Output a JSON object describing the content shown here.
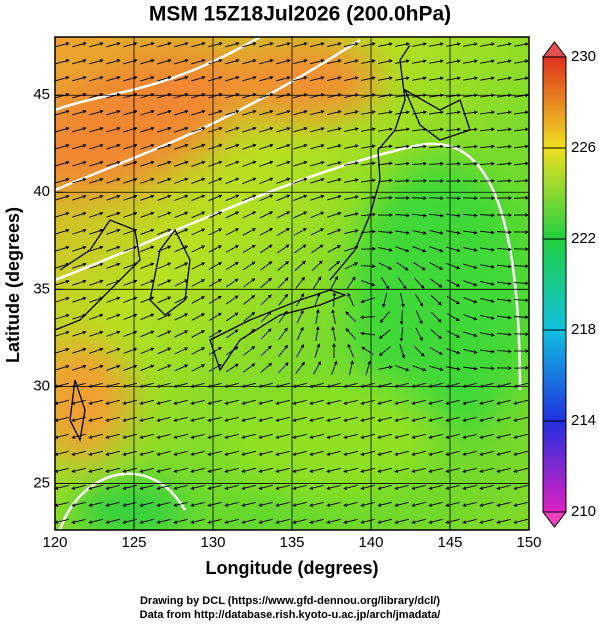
{
  "title": "MSM 15Z18Jul2026 (200.0hPa)",
  "map": {
    "xlabel": "Longitude (degrees)",
    "ylabel": "Latitude  (degrees)",
    "xlim": [
      120,
      150
    ],
    "ylim": [
      22.6,
      48
    ],
    "xticks": [
      120,
      125,
      130,
      135,
      140,
      145,
      150
    ],
    "yticks": [
      25,
      30,
      35,
      40,
      45
    ]
  },
  "colorbar": {
    "lim": [
      210,
      230
    ],
    "ticks": [
      210,
      214,
      218,
      222,
      226,
      230
    ]
  },
  "credits": [
    "Drawing by DCL (https://www.gfd-dennou.org/library/dcl/)",
    "Data from http://database.rish.kyoto-u.ac.jp/arch/jmadata/"
  ]
}
